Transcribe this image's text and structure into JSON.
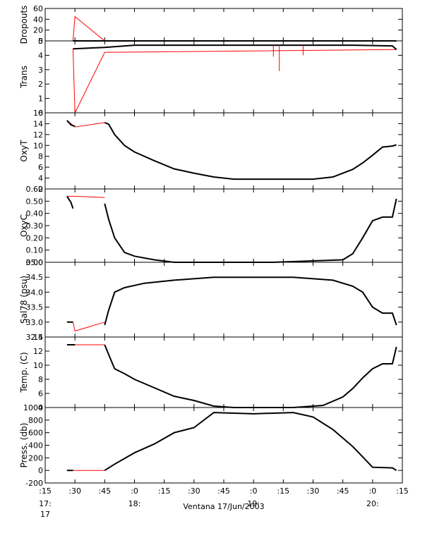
{
  "chart_data": {
    "type": "line",
    "xlabel": "Ventana 17/Jun/2003",
    "x_ticks": [
      {
        "top": ":15",
        "bottom": "17:"
      },
      {
        "top": ":30",
        "bottom": ""
      },
      {
        "top": ":45",
        "bottom": ""
      },
      {
        "top": ":0",
        "bottom": "18:"
      },
      {
        "top": ":15",
        "bottom": ""
      },
      {
        "top": ":30",
        "bottom": ""
      },
      {
        "top": ":45",
        "bottom": ""
      },
      {
        "top": ":0",
        "bottom": "19:"
      },
      {
        "top": ":15",
        "bottom": ""
      },
      {
        "top": ":30",
        "bottom": ""
      },
      {
        "top": ":45",
        "bottom": ""
      },
      {
        "top": ":0",
        "bottom": "20:"
      },
      {
        "top": ":15",
        "bottom": ""
      }
    ],
    "x_extra_label": "17",
    "x_range_minutes": [
      15,
      195
    ],
    "panels": [
      {
        "ylabel": "Dropouts",
        "ylim": [
          0,
          60
        ],
        "yticks": [
          "0",
          "20",
          "40",
          "60"
        ],
        "red": [
          [
            29,
            0
          ],
          [
            30,
            45
          ],
          [
            45,
            0
          ],
          [
            192,
            0
          ]
        ],
        "black": [
          [
            29,
            0
          ],
          [
            192,
            0
          ]
        ]
      },
      {
        "ylabel": "Trans",
        "ylim": [
          0,
          5
        ],
        "yticks": [
          "0",
          "1",
          "2",
          "3",
          "4",
          "5"
        ],
        "red": [
          [
            29,
            4.45
          ],
          [
            30,
            0
          ],
          [
            45,
            4.2
          ],
          [
            192,
            4.4
          ]
        ],
        "black": [
          [
            29,
            4.45
          ],
          [
            45,
            4.55
          ],
          [
            60,
            4.7
          ],
          [
            100,
            4.7
          ],
          [
            150,
            4.7
          ],
          [
            170,
            4.7
          ],
          [
            190,
            4.65
          ],
          [
            192,
            4.4
          ]
        ],
        "dips": [
          [
            130,
            3.9
          ],
          [
            133,
            2.9
          ],
          [
            145,
            4.0
          ]
        ]
      },
      {
        "ylabel": "OxyT",
        "ylim": [
          2,
          16
        ],
        "yticks": [
          "2",
          "4",
          "6",
          "8",
          "10",
          "12",
          "14",
          "16"
        ],
        "red": [
          [
            26,
            14.6
          ],
          [
            30,
            13.4
          ],
          [
            45,
            14.2
          ]
        ],
        "black": [
          [
            26,
            14.6
          ],
          [
            28,
            13.8
          ],
          [
            30,
            13.5
          ]
        ],
        "black2": [
          [
            45,
            14.2
          ],
          [
            47,
            13.9
          ],
          [
            50,
            12.0
          ],
          [
            55,
            10.0
          ],
          [
            60,
            8.8
          ],
          [
            70,
            7.2
          ],
          [
            80,
            5.7
          ],
          [
            90,
            4.9
          ],
          [
            100,
            4.2
          ],
          [
            110,
            3.8
          ],
          [
            130,
            3.8
          ],
          [
            150,
            3.8
          ],
          [
            160,
            4.2
          ],
          [
            170,
            5.6
          ],
          [
            175,
            6.8
          ],
          [
            180,
            8.2
          ],
          [
            185,
            9.7
          ],
          [
            190,
            9.9
          ],
          [
            192,
            10.1
          ]
        ]
      },
      {
        "ylabel": "OxyC",
        "ylim": [
          0.0,
          0.6
        ],
        "yticks": [
          "0.00",
          "0.10",
          "0.20",
          "0.30",
          "0.40",
          "0.50",
          "0.60"
        ],
        "red": [
          [
            26,
            0.54
          ],
          [
            30,
            0.54
          ],
          [
            45,
            0.53
          ]
        ],
        "black": [
          [
            26,
            0.54
          ],
          [
            28,
            0.49
          ],
          [
            29,
            0.44
          ]
        ],
        "black2": [
          [
            45,
            0.48
          ],
          [
            47,
            0.35
          ],
          [
            50,
            0.2
          ],
          [
            55,
            0.08
          ],
          [
            60,
            0.05
          ],
          [
            70,
            0.02
          ],
          [
            80,
            0.0
          ],
          [
            130,
            0.0
          ],
          [
            165,
            0.02
          ],
          [
            170,
            0.07
          ],
          [
            175,
            0.2
          ],
          [
            180,
            0.34
          ],
          [
            185,
            0.37
          ],
          [
            190,
            0.37
          ],
          [
            192,
            0.52
          ]
        ]
      },
      {
        "ylabel": "Sal78 (psu)",
        "ylim": [
          32.5,
          35.0
        ],
        "yticks": [
          "32.5",
          "33.0",
          "33.5",
          "34.0",
          "34.5",
          "35.0"
        ],
        "red": [
          [
            29,
            33.0
          ],
          [
            30,
            32.7
          ],
          [
            45,
            33.0
          ]
        ],
        "black": [
          [
            26,
            33.0
          ],
          [
            29,
            33.0
          ]
        ],
        "black2": [
          [
            45,
            32.9
          ],
          [
            47,
            33.4
          ],
          [
            50,
            34.0
          ],
          [
            55,
            34.15
          ],
          [
            65,
            34.3
          ],
          [
            80,
            34.4
          ],
          [
            100,
            34.5
          ],
          [
            140,
            34.5
          ],
          [
            160,
            34.4
          ],
          [
            170,
            34.2
          ],
          [
            175,
            34.0
          ],
          [
            180,
            33.5
          ],
          [
            185,
            33.3
          ],
          [
            190,
            33.3
          ],
          [
            192,
            32.9
          ]
        ]
      },
      {
        "ylabel": "Temp. (C)",
        "ylim": [
          4,
          14
        ],
        "yticks": [
          "4",
          "6",
          "8",
          "10",
          "12",
          "14"
        ],
        "red": [
          [
            26,
            12.9
          ],
          [
            30,
            12.9
          ],
          [
            45,
            12.9
          ]
        ],
        "black": [
          [
            26,
            12.9
          ],
          [
            30,
            12.9
          ]
        ],
        "black2": [
          [
            45,
            12.9
          ],
          [
            47,
            11.5
          ],
          [
            50,
            9.5
          ],
          [
            55,
            8.8
          ],
          [
            60,
            8.0
          ],
          [
            70,
            6.8
          ],
          [
            80,
            5.6
          ],
          [
            90,
            5.0
          ],
          [
            100,
            4.2
          ],
          [
            110,
            4.0
          ],
          [
            140,
            4.0
          ],
          [
            155,
            4.3
          ],
          [
            165,
            5.5
          ],
          [
            170,
            6.7
          ],
          [
            175,
            8.2
          ],
          [
            180,
            9.5
          ],
          [
            185,
            10.2
          ],
          [
            190,
            10.2
          ],
          [
            192,
            12.6
          ]
        ]
      },
      {
        "ylabel": "Press. (db)",
        "ylim": [
          -200,
          1000
        ],
        "yticks": [
          "-200",
          "0",
          "200",
          "400",
          "600",
          "800",
          "1000"
        ],
        "red": [
          [
            26,
            0
          ],
          [
            30,
            0
          ],
          [
            45,
            0
          ]
        ],
        "black": [
          [
            26,
            0
          ],
          [
            29,
            0
          ]
        ],
        "black2": [
          [
            45,
            0
          ],
          [
            50,
            100
          ],
          [
            60,
            280
          ],
          [
            70,
            420
          ],
          [
            80,
            600
          ],
          [
            90,
            680
          ],
          [
            100,
            920
          ],
          [
            110,
            910
          ],
          [
            120,
            900
          ],
          [
            140,
            920
          ],
          [
            150,
            850
          ],
          [
            160,
            650
          ],
          [
            170,
            380
          ],
          [
            180,
            50
          ],
          [
            190,
            40
          ],
          [
            192,
            0
          ]
        ]
      }
    ]
  }
}
